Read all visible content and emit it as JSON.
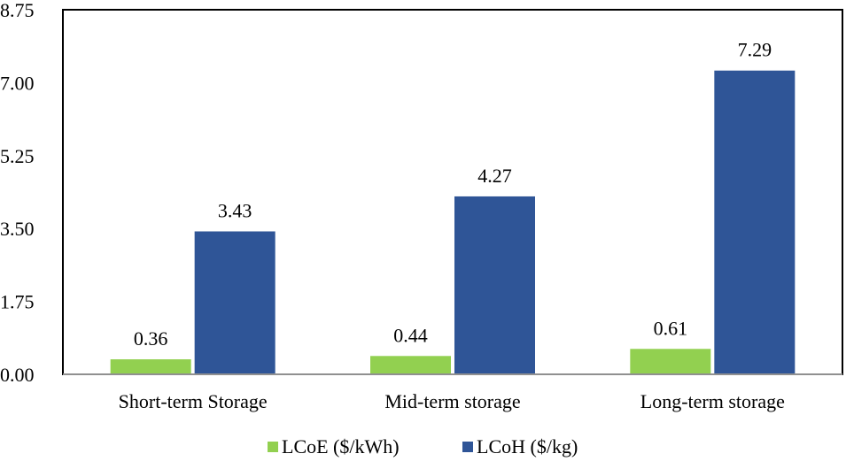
{
  "chart_data": {
    "type": "bar",
    "title": "",
    "xlabel": "",
    "ylabel": "",
    "categories": [
      "Short-term Storage",
      "Mid-term storage",
      "Long-term storage"
    ],
    "series": [
      {
        "name": "LCoE ($/kWh)",
        "color": "#92d050",
        "values": [
          0.36,
          0.44,
          0.61
        ]
      },
      {
        "name": "LCoH ($/kg)",
        "color": "#2f5597",
        "values": [
          3.43,
          4.27,
          7.29
        ]
      }
    ],
    "ylim": [
      0,
      8.75
    ],
    "yticks": [
      "0.00",
      "1.75",
      "3.50",
      "5.25",
      "7.00",
      "8.75"
    ],
    "data_labels": true,
    "grid": false,
    "legend_position": "bottom"
  }
}
